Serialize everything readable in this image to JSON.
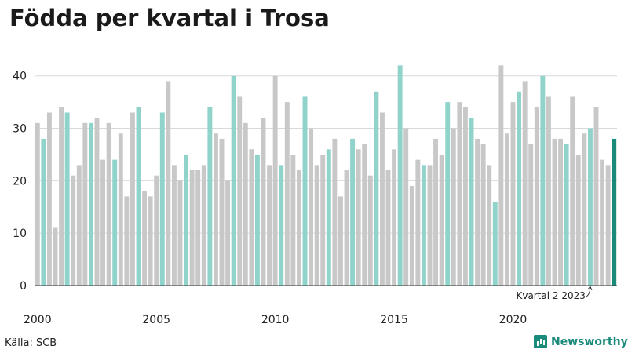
{
  "title": "Födda per kvartal i Trosa",
  "source": "Källa: SCB",
  "brand": {
    "name": "Newsworthy",
    "icon": "bar-chart-icon"
  },
  "colors": {
    "default_bar": "#c8c8c8",
    "q2_bar": "#8fd3cb",
    "latest_bar": "#1a8a7a",
    "grid": "#d9d9d9",
    "axis": "#333333"
  },
  "chart_data": {
    "type": "bar",
    "title": "Födda per kvartal i Trosa",
    "xlabel": "",
    "ylabel": "",
    "ylim": [
      0,
      44
    ],
    "yticks": [
      0,
      10,
      20,
      30,
      40
    ],
    "grid": true,
    "year_labels": [
      "2000",
      "2005",
      "2010",
      "2015",
      "2020"
    ],
    "first_year": 2000,
    "annotation": {
      "text": "Kvartal 2 2023",
      "target_index": 93
    },
    "series": [
      {
        "values": [
          31,
          28,
          33,
          11,
          34,
          33,
          21,
          23,
          31,
          31,
          32,
          24,
          31,
          24,
          29,
          17,
          33,
          34,
          18,
          17,
          21,
          33,
          39,
          23,
          20,
          25,
          22,
          22,
          23,
          34,
          29,
          28,
          20,
          40,
          36,
          31,
          26,
          25,
          32,
          23,
          40,
          23,
          35,
          25,
          22,
          36,
          30,
          23,
          25,
          26,
          28,
          17,
          22,
          28,
          26,
          27,
          21,
          37,
          33,
          22,
          26,
          42,
          30,
          19,
          24,
          23,
          23,
          28,
          25,
          35,
          30,
          35,
          34,
          32,
          28,
          27,
          23,
          16,
          42,
          29,
          35,
          37,
          39,
          27,
          34,
          40,
          36,
          28,
          28,
          27,
          36,
          25,
          29,
          30,
          34,
          24,
          23,
          28
        ]
      }
    ]
  }
}
